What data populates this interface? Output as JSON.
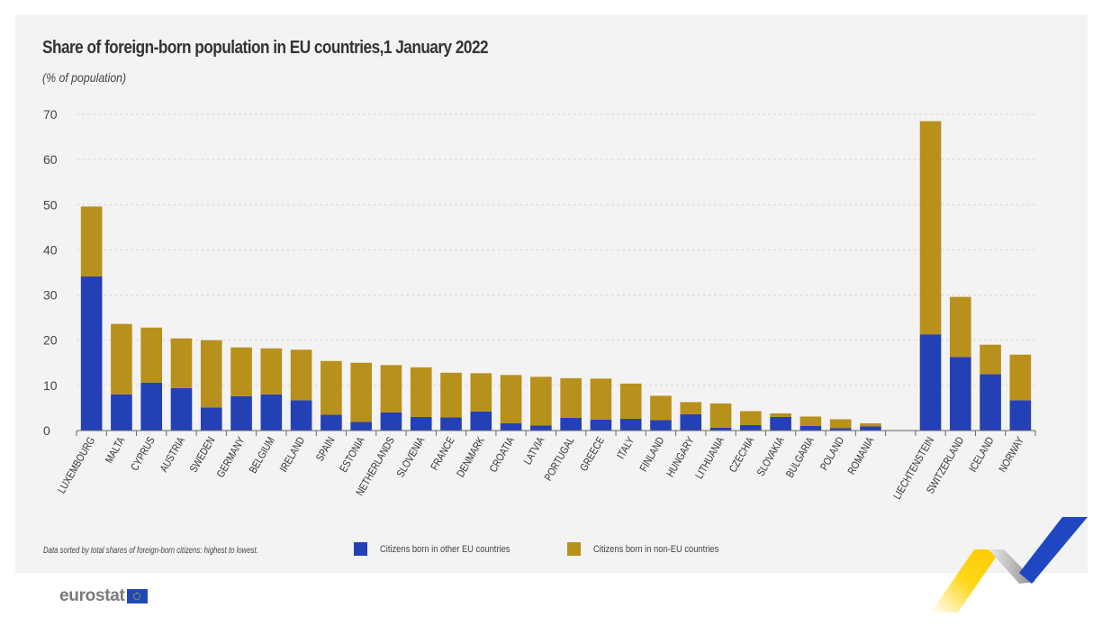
{
  "header": {
    "title": "Share of foreign-born population in EU countries,1 January 2022",
    "subtitle": "(% of population)"
  },
  "legend": {
    "note": "Data sorted by total shares of foreign-born citizens: highest to lowest.",
    "items": [
      {
        "label": "Citizens born in other EU countries",
        "color": "#2440b5"
      },
      {
        "label": "Citizens born in non-EU countries",
        "color": "#b8901c"
      }
    ]
  },
  "branding": {
    "logo_text": "eurostat",
    "logo_icon": "eu-flag-icon",
    "decoration": "eurostat-chevron-ribbon"
  },
  "chart_data": {
    "type": "bar",
    "stacked": true,
    "title": "Share of foreign-born population in EU countries,1 January 2022",
    "subtitle": "(% of population)",
    "xlabel": "",
    "ylabel": "% of population",
    "ylim": [
      0,
      70
    ],
    "yticks": [
      0,
      10,
      20,
      30,
      40,
      50,
      60,
      70
    ],
    "grid": true,
    "legend_position": "bottom",
    "categories": [
      "LUXEMBOURG",
      "MALTA",
      "CYPRUS",
      "AUSTRIA",
      "SWEDEN",
      "GERMANY",
      "BELGIUM",
      "IRELAND",
      "SPAIN",
      "ESTONIA",
      "NETHERLANDS",
      "SLOVENIA",
      "FRANCE",
      "DENMARK",
      "CROATIA",
      "LATVIA",
      "PORTUGAL",
      "GREECE",
      "ITALY",
      "FINLAND",
      "HUNGARY",
      "LITHUANIA",
      "CZECHIA",
      "SLOVAKIA",
      "BULGARIA",
      "POLAND",
      "ROMANIA",
      "",
      "LIECHTENSTEIN",
      "SWITZERLAND",
      "ICELAND",
      "NORWAY"
    ],
    "series": [
      {
        "name": "Citizens born in other EU countries",
        "color": "#2440b5",
        "values": [
          34.1,
          8.0,
          10.6,
          9.4,
          5.1,
          7.6,
          8.0,
          6.7,
          3.5,
          1.9,
          4.0,
          3.0,
          2.9,
          4.2,
          1.6,
          1.1,
          2.8,
          2.4,
          2.6,
          2.3,
          3.6,
          0.6,
          1.2,
          3.0,
          1.0,
          0.5,
          0.9,
          null,
          21.3,
          16.3,
          12.5,
          6.7
        ]
      },
      {
        "name": "Citizens born in non-EU countries",
        "color": "#b8901c",
        "values": [
          15.5,
          15.6,
          12.2,
          11.0,
          14.9,
          10.8,
          10.2,
          11.2,
          11.9,
          13.1,
          10.5,
          11.0,
          9.9,
          8.5,
          10.7,
          10.8,
          8.8,
          9.1,
          7.8,
          5.4,
          2.7,
          5.4,
          3.1,
          0.8,
          2.1,
          2.0,
          0.7,
          null,
          47.2,
          13.3,
          6.5,
          10.1
        ]
      }
    ]
  }
}
